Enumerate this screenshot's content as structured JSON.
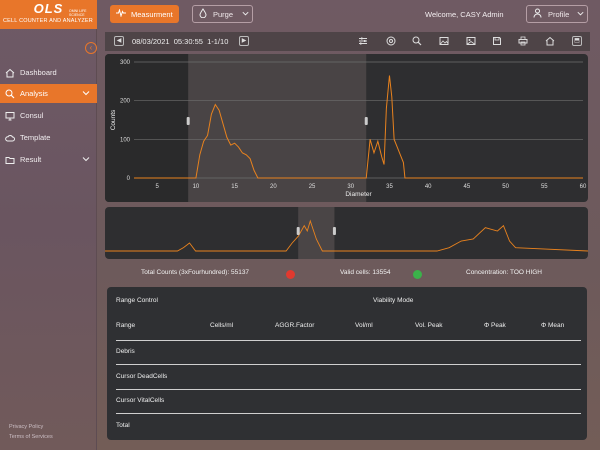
{
  "app": {
    "brand": "OLS",
    "brand_sub": "OMNI LIFE SCIENCE",
    "tagline": "CELL COUNTER AND ANALYZER"
  },
  "sidebar": {
    "items": [
      {
        "label": "Dashboard",
        "icon": "home-icon"
      },
      {
        "label": "Analysis",
        "icon": "search-icon",
        "active": true
      },
      {
        "label": "Consul",
        "icon": "monitor-icon"
      },
      {
        "label": "Template",
        "icon": "cloud-icon"
      },
      {
        "label": "Result",
        "icon": "folder-icon"
      }
    ],
    "footer": {
      "privacy": "Privacy Policy",
      "terms": "Terms of Services"
    }
  },
  "header": {
    "measure_label": "Measurment",
    "purge_label": "Purge",
    "welcome": "Welcome, CASY Admin",
    "profile_label": "Profile"
  },
  "toolbar": {
    "date": "08/03/2021",
    "time": "05:30:55",
    "range": "1-1/10",
    "icons": [
      "sliders-icon",
      "target-icon",
      "zoom-icon",
      "image-icon",
      "image-edit-icon",
      "save-icon",
      "print-icon",
      "home-icon",
      "export-icon"
    ]
  },
  "chart_data": [
    {
      "type": "line",
      "title": "",
      "xlabel": "Diameter",
      "ylabel": "Counts",
      "x_ticks": [
        5,
        10,
        15,
        20,
        25,
        30,
        35,
        40,
        45,
        50,
        55,
        60
      ],
      "y_ticks": [
        0,
        100,
        200,
        300
      ],
      "xlim": [
        2,
        60
      ],
      "ylim": [
        0,
        300
      ],
      "grid": true,
      "series_color": "#e8821e",
      "cursors_x": [
        9,
        32
      ],
      "x": [
        2,
        8,
        10,
        10.5,
        11,
        11.5,
        12,
        12.5,
        13,
        13.5,
        14,
        14.5,
        15,
        15.5,
        16,
        16.5,
        17,
        17.5,
        18,
        32,
        32.5,
        33,
        33.5,
        34,
        34.3,
        34.6,
        35,
        35.3,
        35.6,
        36,
        36.4,
        36.8,
        37,
        60
      ],
      "y": [
        0,
        0,
        0,
        60,
        95,
        110,
        165,
        190,
        175,
        140,
        105,
        85,
        90,
        80,
        65,
        60,
        50,
        20,
        0,
        0,
        100,
        65,
        95,
        55,
        35,
        180,
        265,
        210,
        100,
        80,
        60,
        40,
        0,
        0
      ]
    },
    {
      "type": "line",
      "title": "",
      "xlabel": "",
      "ylabel": "",
      "series_color": "#e8821e",
      "cursors_x": [
        32,
        38
      ],
      "x": [
        0,
        12,
        13,
        14,
        15,
        30,
        31,
        32,
        33,
        33.5,
        34,
        35,
        36,
        55,
        57,
        59,
        61,
        63,
        65,
        66,
        67,
        68,
        80
      ],
      "y": [
        0,
        0,
        5,
        12,
        0,
        0,
        12,
        22,
        38,
        30,
        45,
        18,
        0,
        0,
        5,
        15,
        18,
        35,
        30,
        38,
        15,
        5,
        0
      ]
    }
  ],
  "stats": {
    "total_label": "Total Counts (3xFourhundred):",
    "total_value": "55137",
    "total_status_color": "#e0392f",
    "valid_label": "Valid cells:",
    "valid_value": "13554",
    "valid_status_color": "#3bb24a",
    "conc_label": "Concentration:",
    "conc_value": "TOO HIGH"
  },
  "table": {
    "range_control": "Range Control",
    "viability_mode": "Viability Mode",
    "columns": [
      "Range",
      "Cells/ml",
      "AGGR.Factor",
      "Vol/ml",
      "Vol. Peak",
      "Φ Peak",
      "Φ Mean"
    ],
    "rows": [
      "Debris",
      "Cursor DeadCells",
      "Cursor VitalCells",
      "Total"
    ]
  }
}
